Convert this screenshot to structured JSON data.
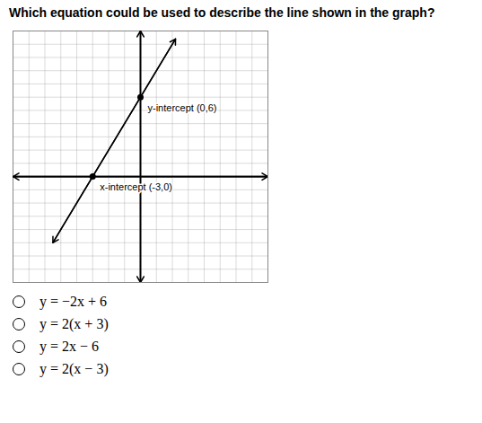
{
  "chart_data": {
    "type": "line",
    "title": "Which equation could be used to describe the line shown in the graph?",
    "x": [
      -5.5,
      2.2
    ],
    "values": [
      -5,
      10.4
    ],
    "color": "#000000",
    "xlim": [
      -8,
      8
    ],
    "ylim": [
      -8,
      11
    ],
    "xticks": [
      -8,
      -7,
      -6,
      -5,
      -4,
      -3,
      -2,
      -1,
      0,
      1,
      2,
      3,
      4,
      5,
      6,
      7,
      8
    ],
    "yticks": [
      -8,
      -7,
      -6,
      -5,
      -4,
      -3,
      -2,
      -1,
      0,
      1,
      2,
      3,
      4,
      5,
      6,
      7,
      8,
      9,
      10,
      11
    ],
    "grid": true,
    "tick_labels": false,
    "points": {
      "x": [
        0,
        -3
      ],
      "y": [
        6,
        0
      ]
    },
    "annotations": [
      {
        "text": "y-intercept (0,6)",
        "x": 0,
        "y": 6
      },
      {
        "text": "x-intercept (-3,0)",
        "x": -3,
        "y": 0
      }
    ],
    "choices": [
      "y = −2x + 6",
      "y = 2(x + 3)",
      "y = 2x − 6",
      "y = 2(x − 3)"
    ]
  }
}
